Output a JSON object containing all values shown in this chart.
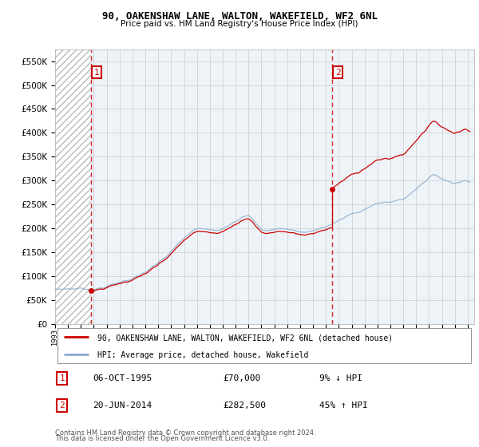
{
  "title1": "90, OAKENSHAW LANE, WALTON, WAKEFIELD, WF2 6NL",
  "title2": "Price paid vs. HM Land Registry's House Price Index (HPI)",
  "legend1": "90, OAKENSHAW LANE, WALTON, WAKEFIELD, WF2 6NL (detached house)",
  "legend2": "HPI: Average price, detached house, Wakefield",
  "footer": "Contains HM Land Registry data © Crown copyright and database right 2024.\nThis data is licensed under the Open Government Licence v3.0.",
  "sale1_year": 1995.76,
  "sale1_price": 70000,
  "sale2_year": 2014.47,
  "sale2_price": 282500,
  "red_color": "#cc0000",
  "blue_color": "#88aacc",
  "ylim_min": 0,
  "ylim_max": 575000,
  "xlim_min": 1993.0,
  "xlim_max": 2025.5,
  "yticks": [
    0,
    50000,
    100000,
    150000,
    200000,
    250000,
    300000,
    350000,
    400000,
    450000,
    500000,
    550000
  ]
}
